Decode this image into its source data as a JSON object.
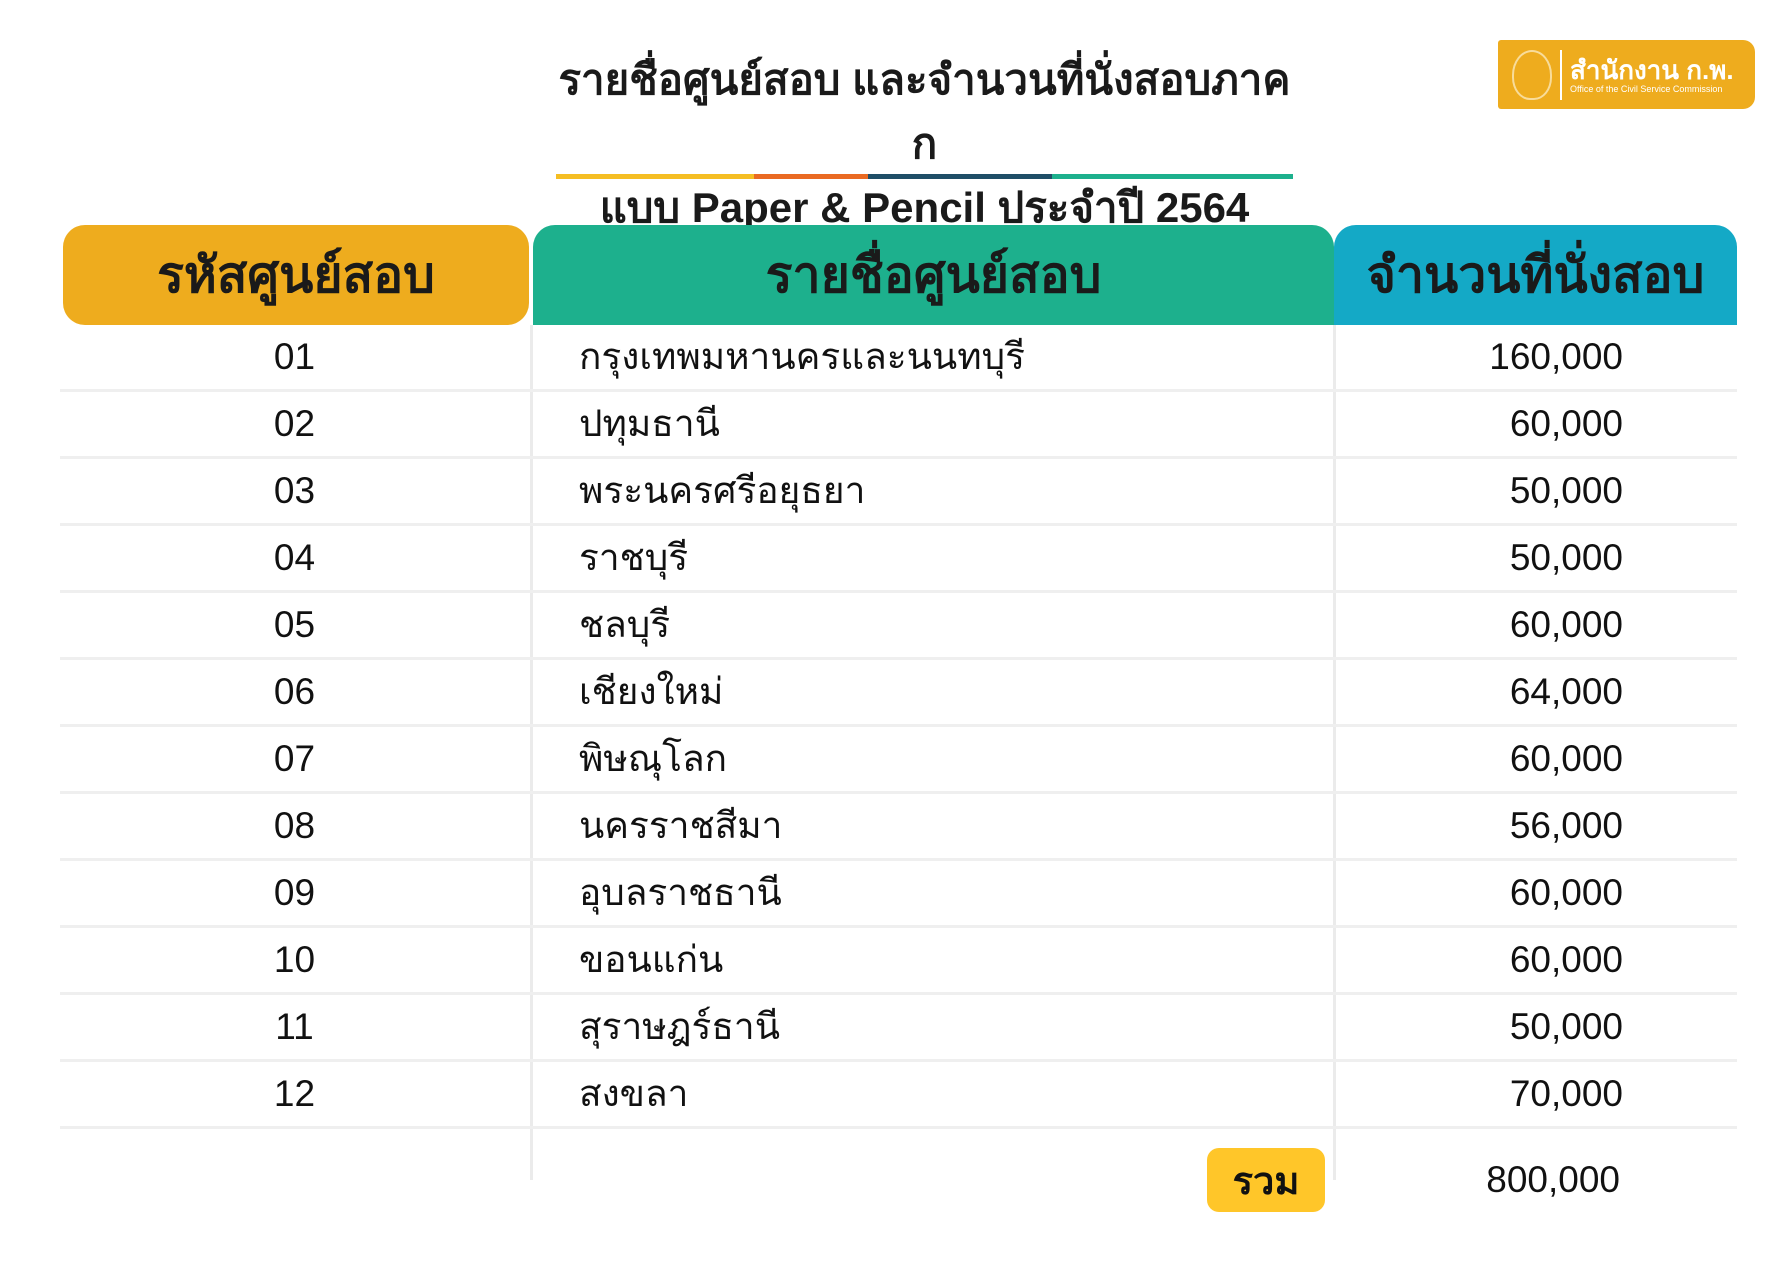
{
  "title": {
    "line1": "รายชื่อศูนย์สอบ และจำนวนที่นั่งสอบภาค ก",
    "line2": "แบบ Paper & Pencil ประจำปี 2564"
  },
  "underline_colors": [
    "#F5BE23",
    "#EA6A22",
    "#1F4E67",
    "#1DB08D"
  ],
  "logo": {
    "thai": "สำนักงาน ก.พ.",
    "english": "Office of the Civil Service Commission"
  },
  "table": {
    "headers": {
      "code": "รหัสศูนย์สอบ",
      "name": "รายชื่อศูนย์สอบ",
      "seats": "จำนวนที่นั่งสอบ"
    },
    "header_colors": {
      "code": "#EEAC1E",
      "name": "#1DB08D",
      "seats": "#14A9C6"
    },
    "rows": [
      {
        "code": "01",
        "name": "กรุงเทพมหานครและนนทบุรี",
        "seats": "160,000"
      },
      {
        "code": "02",
        "name": "ปทุมธานี",
        "seats": "60,000"
      },
      {
        "code": "03",
        "name": "พระนครศรีอยุธยา",
        "seats": "50,000"
      },
      {
        "code": "04",
        "name": "ราชบุรี",
        "seats": "50,000"
      },
      {
        "code": "05",
        "name": "ชลบุรี",
        "seats": "60,000"
      },
      {
        "code": "06",
        "name": "เชียงใหม่",
        "seats": "64,000"
      },
      {
        "code": "07",
        "name": "พิษณุโลก",
        "seats": "60,000"
      },
      {
        "code": "08",
        "name": "นครราชสีมา",
        "seats": "56,000"
      },
      {
        "code": "09",
        "name": "อุบลราชธานี",
        "seats": "60,000"
      },
      {
        "code": "10",
        "name": "ขอนแก่น",
        "seats": "60,000"
      },
      {
        "code": "11",
        "name": "สุราษฎร์ธานี",
        "seats": "50,000"
      },
      {
        "code": "12",
        "name": "สงขลา",
        "seats": "70,000"
      }
    ],
    "total_label": "รวม",
    "total_value": "800,000"
  }
}
